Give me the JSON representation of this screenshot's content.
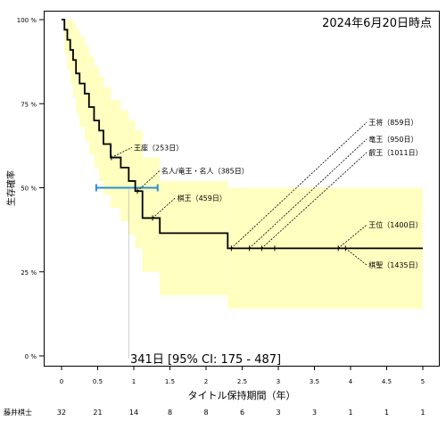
{
  "chart_data": {
    "type": "line",
    "title": "2024年6月20日時点",
    "xlabel": "タイトル保持期間（年）",
    "ylabel": "生存確率",
    "xlim": [
      -0.3,
      5.05
    ],
    "ylim": [
      0,
      1
    ],
    "x_ticks": [
      "0",
      "0.5",
      "1",
      "1.5",
      "2",
      "2.5",
      "3",
      "3.5",
      "4",
      "4.5",
      "5"
    ],
    "x_tick_values": [
      0,
      0.5,
      1,
      1.5,
      2,
      2.5,
      3,
      3.5,
      4,
      4.5,
      5
    ],
    "y_ticks": [
      "0 %",
      "25 %",
      "50 %",
      "75 %",
      "100 %"
    ],
    "y_tick_values": [
      0,
      0.25,
      0.5,
      0.75,
      1.0
    ],
    "survival_curve": {
      "x": [
        0,
        0.04,
        0.08,
        0.12,
        0.16,
        0.2,
        0.25,
        0.32,
        0.38,
        0.45,
        0.52,
        0.58,
        0.68,
        0.82,
        0.93,
        1.02,
        1.12,
        1.36,
        2.3,
        5.0
      ],
      "y": [
        1.0,
        0.97,
        0.94,
        0.91,
        0.88,
        0.84,
        0.81,
        0.78,
        0.74,
        0.7,
        0.67,
        0.63,
        0.59,
        0.56,
        0.52,
        0.49,
        0.41,
        0.365,
        0.32,
        0.32
      ]
    },
    "ci_band": {
      "x": [
        0,
        0.04,
        0.08,
        0.12,
        0.16,
        0.2,
        0.25,
        0.32,
        0.38,
        0.45,
        0.52,
        0.58,
        0.68,
        0.82,
        0.93,
        1.02,
        1.12,
        1.36,
        2.3,
        5.0
      ],
      "lower": [
        1.0,
        0.9,
        0.85,
        0.81,
        0.77,
        0.72,
        0.68,
        0.64,
        0.6,
        0.56,
        0.52,
        0.48,
        0.44,
        0.4,
        0.36,
        0.32,
        0.25,
        0.18,
        0.14,
        0.14
      ],
      "upper": [
        1.0,
        1.0,
        1.0,
        1.0,
        0.99,
        0.97,
        0.95,
        0.92,
        0.89,
        0.86,
        0.83,
        0.8,
        0.76,
        0.73,
        0.7,
        0.67,
        0.59,
        0.52,
        0.5,
        0.5
      ]
    },
    "censor_marks": [
      {
        "x": 0.69,
        "y": 0.59
      },
      {
        "x": 1.05,
        "y": 0.49
      },
      {
        "x": 1.26,
        "y": 0.41
      },
      {
        "x": 2.35,
        "y": 0.32
      },
      {
        "x": 2.6,
        "y": 0.32
      },
      {
        "x": 2.77,
        "y": 0.32
      },
      {
        "x": 2.95,
        "y": 0.32
      },
      {
        "x": 3.83,
        "y": 0.32
      },
      {
        "x": 3.93,
        "y": 0.32
      }
    ],
    "median": {
      "x": 0.93,
      "ci": [
        0.48,
        1.33
      ],
      "label": "341日 [95% CI: 175 - 487]"
    },
    "annotations": [
      {
        "text": "王座（253日）",
        "point": [
          0.69,
          0.59
        ],
        "label_at": [
          1.0,
          0.62
        ]
      },
      {
        "text": "名人/竜王・名人（385日）",
        "point": [
          1.05,
          0.49
        ],
        "label_at": [
          1.38,
          0.55
        ]
      },
      {
        "text": "棋王（459日）",
        "point": [
          1.26,
          0.41
        ],
        "label_at": [
          1.6,
          0.47
        ]
      },
      {
        "text": "王将（859日）",
        "point": [
          2.35,
          0.32
        ],
        "label_at": [
          4.25,
          0.695
        ]
      },
      {
        "text": "竜王（950日）",
        "point": [
          2.6,
          0.32
        ],
        "label_at": [
          4.25,
          0.645
        ]
      },
      {
        "text": "叡王（1011日）",
        "point": [
          2.77,
          0.32
        ],
        "label_at": [
          4.25,
          0.605
        ]
      },
      {
        "text": "王位（1400日）",
        "point": [
          3.83,
          0.32
        ],
        "label_at": [
          4.25,
          0.39
        ]
      },
      {
        "text": "棋聖（1435日）",
        "point": [
          3.93,
          0.32
        ],
        "label_at": [
          4.25,
          0.27
        ]
      }
    ],
    "risk_table": {
      "label": "藤井棋士",
      "values": [
        "32",
        "21",
        "14",
        "8",
        "8",
        "6",
        "3",
        "3",
        "1",
        "1",
        "1"
      ]
    },
    "colors": {
      "curve": "#000000",
      "ci_fill": "#ffffc0",
      "median_ci": "#2a8fd0",
      "median_line": "#999999"
    }
  }
}
